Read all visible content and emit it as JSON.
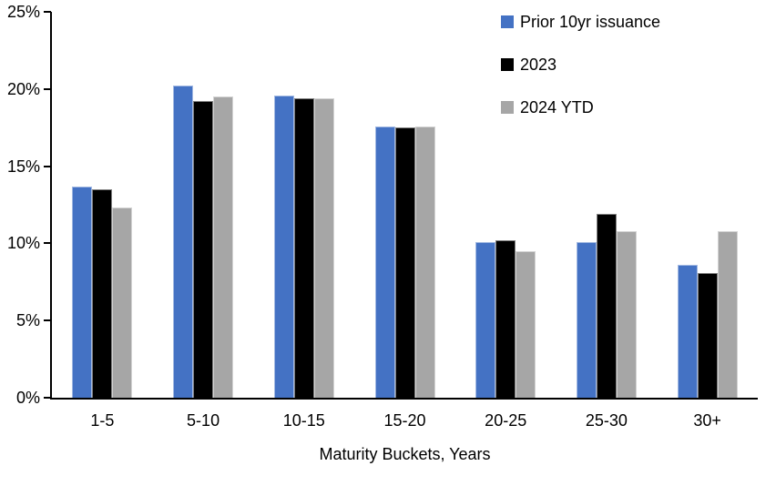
{
  "chart_data": {
    "type": "bar",
    "title": "",
    "categories": [
      "1-5",
      "5-10",
      "10-15",
      "15-20",
      "20-25",
      "25-30",
      "30+"
    ],
    "series": [
      {
        "name": "Prior 10yr issuance",
        "color": "#4472C4",
        "values": [
          13.7,
          20.2,
          19.6,
          17.6,
          10.1,
          10.1,
          8.6
        ]
      },
      {
        "name": "2023",
        "color": "#000000",
        "values": [
          13.5,
          19.2,
          19.4,
          17.5,
          10.2,
          11.9,
          8.1
        ]
      },
      {
        "name": "2024 YTD",
        "color": "#A6A6A6",
        "values": [
          12.3,
          19.5,
          19.4,
          17.6,
          9.5,
          10.8,
          10.8
        ]
      }
    ],
    "xlabel": "Maturity Buckets, Years",
    "ylabel": "",
    "ylim": [
      0,
      25
    ],
    "ytick_step": 5,
    "ytick_labels": [
      "0%",
      "5%",
      "10%",
      "15%",
      "20%",
      "25%"
    ],
    "legend_position": "top-right",
    "grid": false,
    "axis_color": "#000000",
    "background": "#FFFFFF"
  }
}
